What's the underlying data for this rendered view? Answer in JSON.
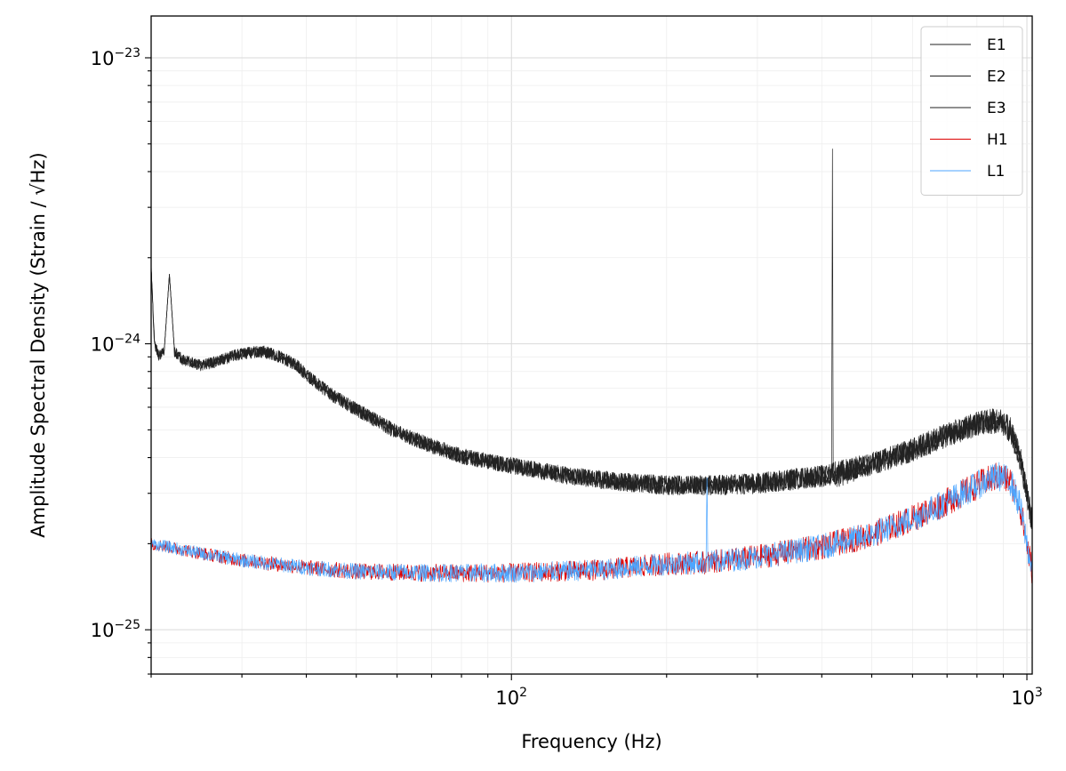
{
  "chart_data": {
    "type": "line",
    "xscale": "log",
    "yscale": "log",
    "xlim": [
      20,
      1024
    ],
    "ylim": [
      7e-26,
      1.4e-23
    ],
    "xlabel": "Frequency (Hz)",
    "ylabel": "Amplitude Spectral Density (Strain / √Hz)",
    "x_tick_labels": [
      {
        "value": 100,
        "base": "10",
        "exp": "2"
      },
      {
        "value": 1000,
        "base": "10",
        "exp": "3"
      }
    ],
    "y_tick_labels": [
      {
        "value": 1e-23,
        "base": "10",
        "exp": "−23"
      },
      {
        "value": 1e-24,
        "base": "10",
        "exp": "−24"
      },
      {
        "value": 1e-25,
        "base": "10",
        "exp": "−25"
      }
    ],
    "grid": true,
    "legend": "top-right",
    "series": [
      {
        "name": "E1",
        "color": "#222222",
        "noise": 0.06,
        "points": [
          [
            20,
            1.85e-24
          ],
          [
            20.3,
            1e-24
          ],
          [
            20.7,
            9.1e-25
          ],
          [
            21.2,
            9.4e-25
          ],
          [
            21.7,
            1.75e-24
          ],
          [
            22.2,
            9.4e-25
          ],
          [
            23,
            8.8e-25
          ],
          [
            25,
            8.4e-25
          ],
          [
            27,
            8.7e-25
          ],
          [
            29,
            9.1e-25
          ],
          [
            31,
            9.3e-25
          ],
          [
            33,
            9.4e-25
          ],
          [
            35,
            9.1e-25
          ],
          [
            38,
            8.5e-25
          ],
          [
            41,
            7.5e-25
          ],
          [
            45,
            6.6e-25
          ],
          [
            50,
            5.9e-25
          ],
          [
            60,
            4.9e-25
          ],
          [
            70,
            4.4e-25
          ],
          [
            80,
            4.05e-25
          ],
          [
            100,
            3.75e-25
          ],
          [
            130,
            3.45e-25
          ],
          [
            160,
            3.3e-25
          ],
          [
            200,
            3.2e-25
          ],
          [
            250,
            3.2e-25
          ],
          [
            300,
            3.25e-25
          ],
          [
            400,
            3.45e-25
          ],
          [
            500,
            3.8e-25
          ],
          [
            600,
            4.25e-25
          ],
          [
            700,
            4.8e-25
          ],
          [
            800,
            5.25e-25
          ],
          [
            880,
            5.4e-25
          ],
          [
            930,
            5e-25
          ],
          [
            970,
            4e-25
          ],
          [
            1000,
            3e-25
          ],
          [
            1024,
            2.35e-25
          ]
        ]
      },
      {
        "name": "E2",
        "color": "#222222",
        "noise": 0.06,
        "points": [
          [
            20,
            1.85e-24
          ],
          [
            20.3,
            1e-24
          ],
          [
            20.7,
            9.1e-25
          ],
          [
            21.2,
            9.4e-25
          ],
          [
            21.7,
            1.75e-24
          ],
          [
            22.2,
            9.4e-25
          ],
          [
            23,
            8.8e-25
          ],
          [
            25,
            8.4e-25
          ],
          [
            27,
            8.7e-25
          ],
          [
            29,
            9.1e-25
          ],
          [
            31,
            9.3e-25
          ],
          [
            33,
            9.4e-25
          ],
          [
            35,
            9.1e-25
          ],
          [
            38,
            8.5e-25
          ],
          [
            41,
            7.5e-25
          ],
          [
            45,
            6.6e-25
          ],
          [
            50,
            5.9e-25
          ],
          [
            60,
            4.9e-25
          ],
          [
            70,
            4.4e-25
          ],
          [
            80,
            4.05e-25
          ],
          [
            100,
            3.75e-25
          ],
          [
            130,
            3.45e-25
          ],
          [
            160,
            3.3e-25
          ],
          [
            200,
            3.2e-25
          ],
          [
            250,
            3.2e-25
          ],
          [
            300,
            3.25e-25
          ],
          [
            400,
            3.45e-25
          ],
          [
            500,
            3.8e-25
          ],
          [
            600,
            4.25e-25
          ],
          [
            700,
            4.8e-25
          ],
          [
            800,
            5.25e-25
          ],
          [
            880,
            5.4e-25
          ],
          [
            930,
            5e-25
          ],
          [
            970,
            4e-25
          ],
          [
            1000,
            3e-25
          ],
          [
            1024,
            2.35e-25
          ]
        ]
      },
      {
        "name": "E3",
        "color": "#222222",
        "noise": 0.06,
        "points": [
          [
            20,
            1.85e-24
          ],
          [
            20.3,
            1e-24
          ],
          [
            20.7,
            9.1e-25
          ],
          [
            21.2,
            9.4e-25
          ],
          [
            21.7,
            1.75e-24
          ],
          [
            22.2,
            9.4e-25
          ],
          [
            23,
            8.8e-25
          ],
          [
            25,
            8.4e-25
          ],
          [
            27,
            8.7e-25
          ],
          [
            29,
            9.1e-25
          ],
          [
            31,
            9.3e-25
          ],
          [
            33,
            9.4e-25
          ],
          [
            35,
            9.1e-25
          ],
          [
            38,
            8.5e-25
          ],
          [
            41,
            7.5e-25
          ],
          [
            45,
            6.6e-25
          ],
          [
            50,
            5.9e-25
          ],
          [
            60,
            4.9e-25
          ],
          [
            70,
            4.4e-25
          ],
          [
            80,
            4.05e-25
          ],
          [
            100,
            3.75e-25
          ],
          [
            130,
            3.45e-25
          ],
          [
            160,
            3.3e-25
          ],
          [
            200,
            3.2e-25
          ],
          [
            250,
            3.2e-25
          ],
          [
            300,
            3.25e-25
          ],
          [
            400,
            3.45e-25
          ],
          [
            418,
            3.4e-25
          ],
          [
            419.5,
            4.8e-24
          ],
          [
            421,
            3.4e-25
          ],
          [
            500,
            3.8e-25
          ],
          [
            600,
            4.25e-25
          ],
          [
            700,
            4.8e-25
          ],
          [
            800,
            5.25e-25
          ],
          [
            880,
            5.4e-25
          ],
          [
            930,
            5e-25
          ],
          [
            970,
            4e-25
          ],
          [
            1000,
            3e-25
          ],
          [
            1024,
            2.35e-25
          ]
        ]
      },
      {
        "name": "H1",
        "color": "#dd0000",
        "noise": 0.07,
        "points": [
          [
            20,
            2e-25
          ],
          [
            25,
            1.85e-25
          ],
          [
            30,
            1.75e-25
          ],
          [
            40,
            1.65e-25
          ],
          [
            50,
            1.6e-25
          ],
          [
            70,
            1.58e-25
          ],
          [
            100,
            1.58e-25
          ],
          [
            150,
            1.62e-25
          ],
          [
            200,
            1.7e-25
          ],
          [
            240,
            1.72e-25
          ],
          [
            300,
            1.8e-25
          ],
          [
            400,
            1.95e-25
          ],
          [
            500,
            2.15e-25
          ],
          [
            600,
            2.45e-25
          ],
          [
            700,
            2.8e-25
          ],
          [
            800,
            3.2e-25
          ],
          [
            880,
            3.45e-25
          ],
          [
            930,
            3.3e-25
          ],
          [
            970,
            2.7e-25
          ],
          [
            1000,
            2e-25
          ],
          [
            1024,
            1.6e-25
          ]
        ]
      },
      {
        "name": "L1",
        "color": "#4da6ff",
        "noise": 0.07,
        "points": [
          [
            20,
            2e-25
          ],
          [
            25,
            1.85e-25
          ],
          [
            30,
            1.75e-25
          ],
          [
            40,
            1.65e-25
          ],
          [
            50,
            1.6e-25
          ],
          [
            70,
            1.58e-25
          ],
          [
            100,
            1.58e-25
          ],
          [
            150,
            1.62e-25
          ],
          [
            200,
            1.7e-25
          ],
          [
            238.5,
            1.72e-25
          ],
          [
            239.5,
            3.4e-25
          ],
          [
            240.5,
            1.72e-25
          ],
          [
            300,
            1.8e-25
          ],
          [
            400,
            1.95e-25
          ],
          [
            500,
            2.15e-25
          ],
          [
            600,
            2.45e-25
          ],
          [
            700,
            2.8e-25
          ],
          [
            800,
            3.2e-25
          ],
          [
            880,
            3.45e-25
          ],
          [
            930,
            3.3e-25
          ],
          [
            970,
            2.7e-25
          ],
          [
            1000,
            2e-25
          ],
          [
            1024,
            1.6e-25
          ]
        ]
      }
    ]
  }
}
